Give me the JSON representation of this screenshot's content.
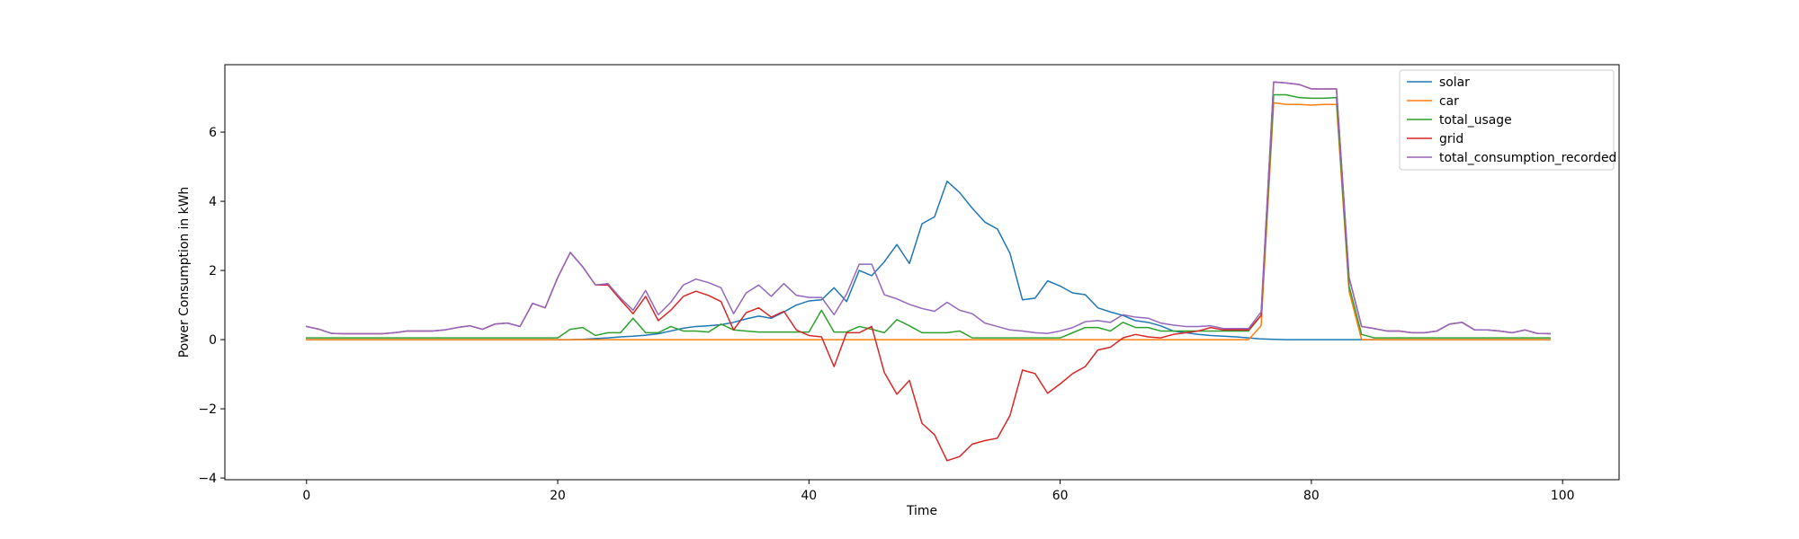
{
  "chart_data": {
    "type": "line",
    "title": "",
    "xlabel": "Time",
    "ylabel": "Power Consumption in kWh",
    "xlim": [
      -6.5,
      104.5
    ],
    "ylim": [
      -4.05,
      7.95
    ],
    "xticks": [
      0,
      20,
      40,
      60,
      80,
      100
    ],
    "yticks": [
      -4,
      -2,
      0,
      2,
      4,
      6
    ],
    "xtick_labels": [
      "0",
      "20",
      "40",
      "60",
      "80",
      "100"
    ],
    "ytick_labels": [
      "−4",
      "−2",
      "0",
      "2",
      "4",
      "6"
    ],
    "grid": false,
    "legend_position": "upper right",
    "x": [
      0,
      1,
      2,
      3,
      4,
      5,
      6,
      7,
      8,
      9,
      10,
      11,
      12,
      13,
      14,
      15,
      16,
      17,
      18,
      19,
      20,
      21,
      22,
      23,
      24,
      25,
      26,
      27,
      28,
      29,
      30,
      31,
      32,
      33,
      34,
      35,
      36,
      37,
      38,
      39,
      40,
      41,
      42,
      43,
      44,
      45,
      46,
      47,
      48,
      49,
      50,
      51,
      52,
      53,
      54,
      55,
      56,
      57,
      58,
      59,
      60,
      61,
      62,
      63,
      64,
      65,
      66,
      67,
      68,
      69,
      70,
      71,
      72,
      73,
      74,
      75,
      76,
      77,
      78,
      79,
      80,
      81,
      82,
      83,
      84,
      85,
      86,
      87,
      88,
      89,
      90,
      91,
      92,
      93,
      94,
      95,
      96,
      97,
      98,
      99
    ],
    "series": [
      {
        "name": "solar",
        "color": "#1f77b4",
        "values": [
          0,
          0,
          0,
          0,
          0,
          0,
          0,
          0,
          0,
          0,
          0,
          0,
          0,
          0,
          0,
          0,
          0,
          0,
          0,
          0,
          0,
          0,
          0.01,
          0.03,
          0.05,
          0.08,
          0.1,
          0.13,
          0.17,
          0.25,
          0.33,
          0.38,
          0.4,
          0.43,
          0.5,
          0.6,
          0.68,
          0.62,
          0.8,
          1.0,
          1.12,
          1.15,
          1.5,
          1.1,
          2.0,
          1.85,
          2.25,
          2.75,
          2.2,
          3.35,
          3.55,
          4.58,
          4.25,
          3.8,
          3.4,
          3.2,
          2.5,
          1.15,
          1.2,
          1.7,
          1.55,
          1.35,
          1.3,
          0.92,
          0.8,
          0.7,
          0.55,
          0.5,
          0.4,
          0.25,
          0.2,
          0.15,
          0.12,
          0.1,
          0.08,
          0.05,
          0.02,
          0.01,
          0,
          0,
          0,
          0,
          0,
          0,
          0,
          0,
          0,
          0,
          0,
          0,
          0,
          0,
          0,
          0,
          0,
          0,
          0,
          0,
          0,
          0
        ]
      },
      {
        "name": "car",
        "color": "#ff7f0e",
        "values": [
          0,
          0,
          0,
          0,
          0,
          0,
          0,
          0,
          0,
          0,
          0,
          0,
          0,
          0,
          0,
          0,
          0,
          0,
          0,
          0,
          0,
          0,
          0,
          0,
          0,
          0,
          0,
          0,
          0,
          0,
          0,
          0,
          0,
          0,
          0,
          0,
          0,
          0,
          0,
          0,
          0,
          0,
          0,
          0,
          0,
          0,
          0,
          0,
          0,
          0,
          0,
          0,
          0,
          0,
          0,
          0,
          0,
          0,
          0,
          0,
          0,
          0,
          0,
          0,
          0,
          0,
          0,
          0,
          0,
          0,
          0,
          0,
          0,
          0,
          0,
          0,
          0.4,
          6.85,
          6.8,
          6.8,
          6.78,
          6.8,
          6.8,
          1.4,
          0,
          0,
          0,
          0,
          0,
          0,
          0,
          0,
          0,
          0,
          0,
          0,
          0,
          0,
          0,
          0
        ]
      },
      {
        "name": "total_usage",
        "color": "#2ca02c",
        "values": [
          0.05,
          0.05,
          0.05,
          0.05,
          0.05,
          0.05,
          0.05,
          0.05,
          0.05,
          0.05,
          0.05,
          0.05,
          0.05,
          0.05,
          0.05,
          0.05,
          0.05,
          0.05,
          0.05,
          0.05,
          0.05,
          0.3,
          0.35,
          0.12,
          0.2,
          0.2,
          0.62,
          0.2,
          0.2,
          0.38,
          0.25,
          0.25,
          0.22,
          0.45,
          0.28,
          0.25,
          0.22,
          0.22,
          0.22,
          0.22,
          0.22,
          0.85,
          0.22,
          0.22,
          0.38,
          0.3,
          0.2,
          0.58,
          0.4,
          0.2,
          0.2,
          0.2,
          0.25,
          0.05,
          0.05,
          0.05,
          0.05,
          0.05,
          0.05,
          0.05,
          0.05,
          0.2,
          0.35,
          0.35,
          0.25,
          0.5,
          0.35,
          0.35,
          0.25,
          0.25,
          0.25,
          0.25,
          0.25,
          0.25,
          0.25,
          0.25,
          0.7,
          7.08,
          7.08,
          7.0,
          6.98,
          6.98,
          7.0,
          1.55,
          0.15,
          0.05,
          0.05,
          0.05,
          0.05,
          0.05,
          0.05,
          0.05,
          0.05,
          0.05,
          0.05,
          0.05,
          0.05,
          0.05,
          0.05,
          0.05
        ]
      },
      {
        "name": "grid",
        "color": "#d62728",
        "values": [
          0.38,
          0.3,
          0.18,
          0.17,
          0.17,
          0.17,
          0.17,
          0.2,
          0.25,
          0.25,
          0.25,
          0.28,
          0.35,
          0.4,
          0.3,
          0.45,
          0.48,
          0.38,
          1.05,
          0.92,
          1.8,
          2.52,
          2.1,
          1.58,
          1.58,
          1.15,
          0.75,
          1.25,
          0.55,
          0.85,
          1.25,
          1.4,
          1.28,
          1.1,
          0.28,
          0.78,
          0.92,
          0.65,
          0.82,
          0.28,
          0.12,
          0.08,
          -0.78,
          0.2,
          0.2,
          0.38,
          -0.95,
          -1.58,
          -1.18,
          -2.42,
          -2.75,
          -3.5,
          -3.38,
          -3.02,
          -2.92,
          -2.85,
          -2.2,
          -0.88,
          -0.98,
          -1.55,
          -1.28,
          -0.98,
          -0.78,
          -0.3,
          -0.22,
          0.05,
          0.15,
          0.08,
          0.05,
          0.15,
          0.2,
          0.25,
          0.35,
          0.28,
          0.28,
          0.28,
          0.7,
          7.45,
          7.42,
          7.38,
          7.25,
          7.25,
          7.25,
          1.8,
          0.38,
          0.32,
          0.25,
          0.25,
          0.2,
          0.2,
          0.25,
          0.45,
          0.5,
          0.28,
          0.28,
          0.25,
          0.2,
          0.28,
          0.18,
          0.17
        ]
      },
      {
        "name": "total_consumption_recorded",
        "color": "#9467bd",
        "values": [
          0.38,
          0.3,
          0.18,
          0.17,
          0.17,
          0.17,
          0.17,
          0.2,
          0.25,
          0.25,
          0.25,
          0.28,
          0.35,
          0.4,
          0.3,
          0.45,
          0.48,
          0.38,
          1.05,
          0.92,
          1.8,
          2.52,
          2.1,
          1.58,
          1.62,
          1.2,
          0.85,
          1.42,
          0.72,
          1.08,
          1.58,
          1.75,
          1.65,
          1.5,
          0.75,
          1.35,
          1.58,
          1.25,
          1.62,
          1.28,
          1.22,
          1.22,
          0.72,
          1.32,
          2.18,
          2.18,
          1.3,
          1.18,
          1.02,
          0.9,
          0.82,
          1.08,
          0.85,
          0.75,
          0.48,
          0.38,
          0.28,
          0.25,
          0.2,
          0.18,
          0.25,
          0.35,
          0.52,
          0.55,
          0.5,
          0.72,
          0.65,
          0.62,
          0.48,
          0.42,
          0.38,
          0.38,
          0.4,
          0.32,
          0.32,
          0.32,
          0.8,
          7.45,
          7.42,
          7.38,
          7.25,
          7.25,
          7.25,
          1.8,
          0.38,
          0.32,
          0.25,
          0.25,
          0.2,
          0.2,
          0.25,
          0.45,
          0.5,
          0.28,
          0.28,
          0.25,
          0.2,
          0.28,
          0.18,
          0.17
        ]
      }
    ]
  }
}
